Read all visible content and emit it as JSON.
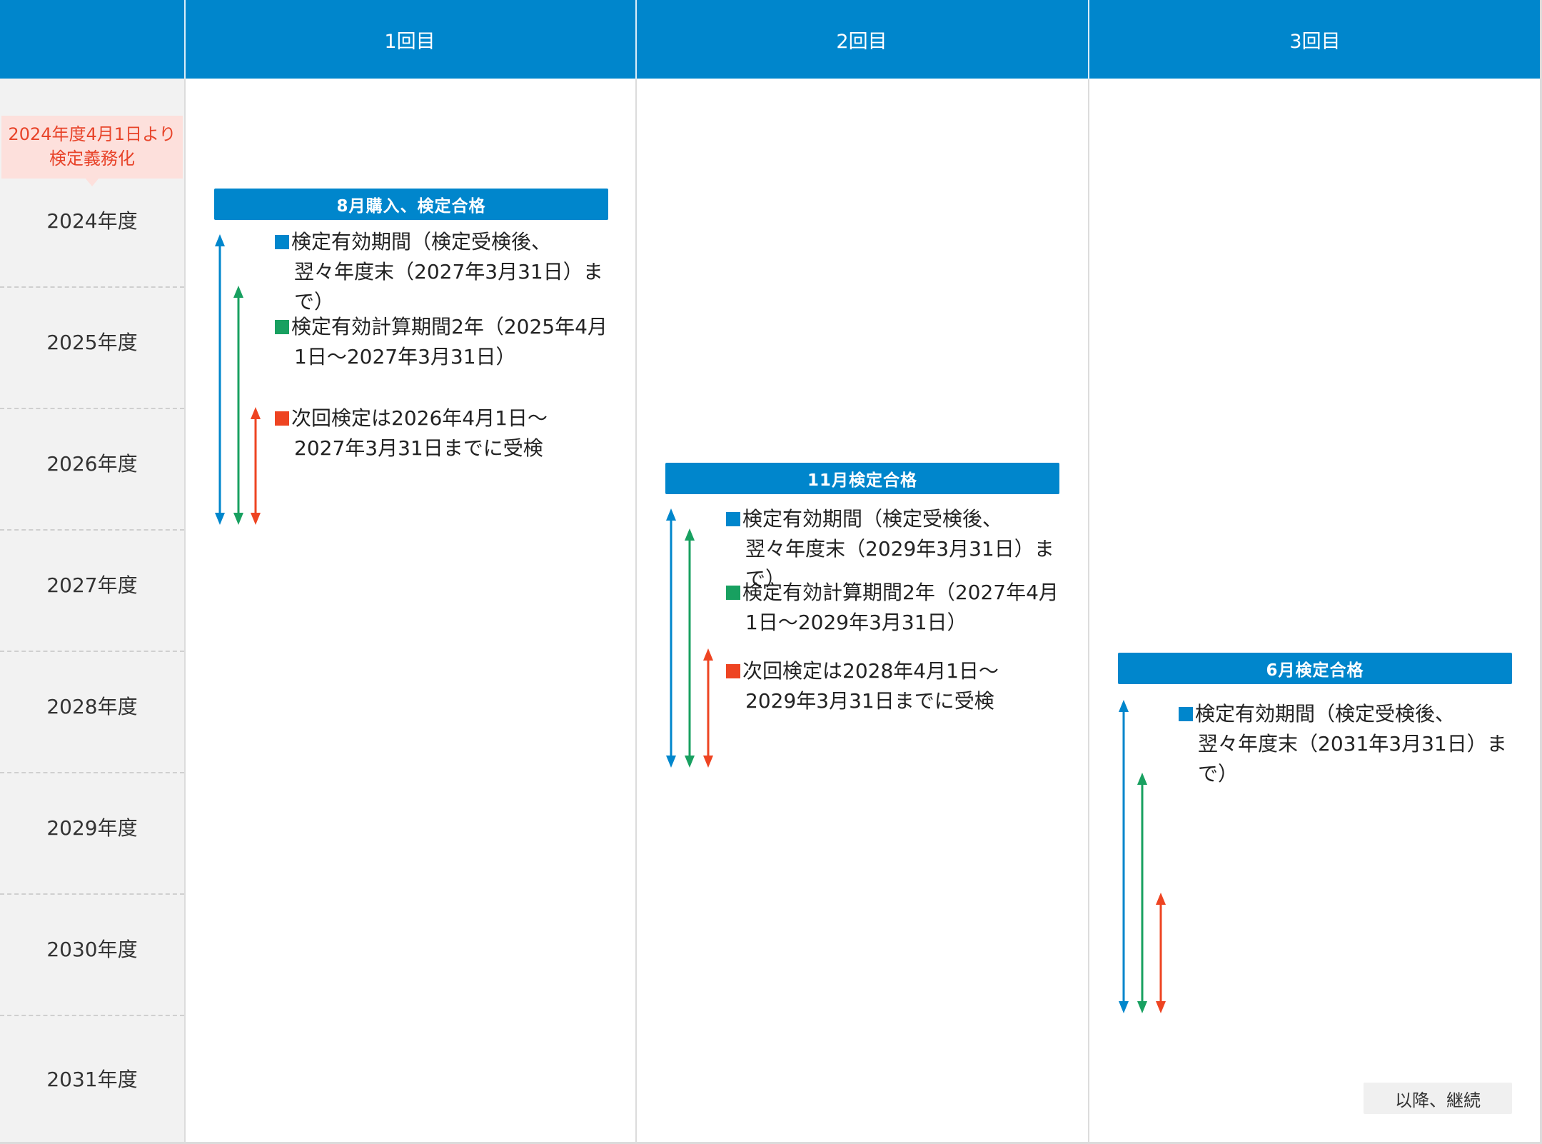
{
  "header": {
    "columns": [
      "1回目",
      "2回目",
      "3回目"
    ]
  },
  "notice": {
    "line1": "2024年度4月1日より",
    "line2": "検定義務化"
  },
  "years": [
    "2024年度",
    "2025年度",
    "2026年度",
    "2027年度",
    "2028年度",
    "2029年度",
    "2030年度",
    "2031年度"
  ],
  "colors": {
    "header": "#0086cc",
    "valid_period": "#0086cc",
    "calc_period": "#18a060",
    "next_inspection": "#ee4422",
    "notice_bg": "#fde0dc",
    "notice_text": "#e8442a"
  },
  "rounds": [
    {
      "badge": "8月購入、検定合格",
      "valid_l1": "検定有効期間（検定受検後、",
      "valid_l2": "翌々年度末（2027年3月31日）まで）",
      "calc_l1": "検定有効計算期間2年（2025年4月",
      "calc_l2": "1日〜2027年3月31日）",
      "next_l1": "次回検定は2026年4月1日〜",
      "next_l2": "2027年3月31日までに受検"
    },
    {
      "badge": "11月検定合格",
      "valid_l1": "検定有効期間（検定受検後、",
      "valid_l2": "翌々年度末（2029年3月31日）まで）",
      "calc_l1": "検定有効計算期間2年（2027年4月",
      "calc_l2": "1日〜2029年3月31日）",
      "next_l1": "次回検定は2028年4月1日〜",
      "next_l2": "2029年3月31日までに受検"
    },
    {
      "badge": "6月検定合格",
      "valid_l1": "検定有効期間（検定受検後、",
      "valid_l2": "翌々年度末（2031年3月31日）まで）"
    }
  ],
  "continuation": "以降、継続"
}
